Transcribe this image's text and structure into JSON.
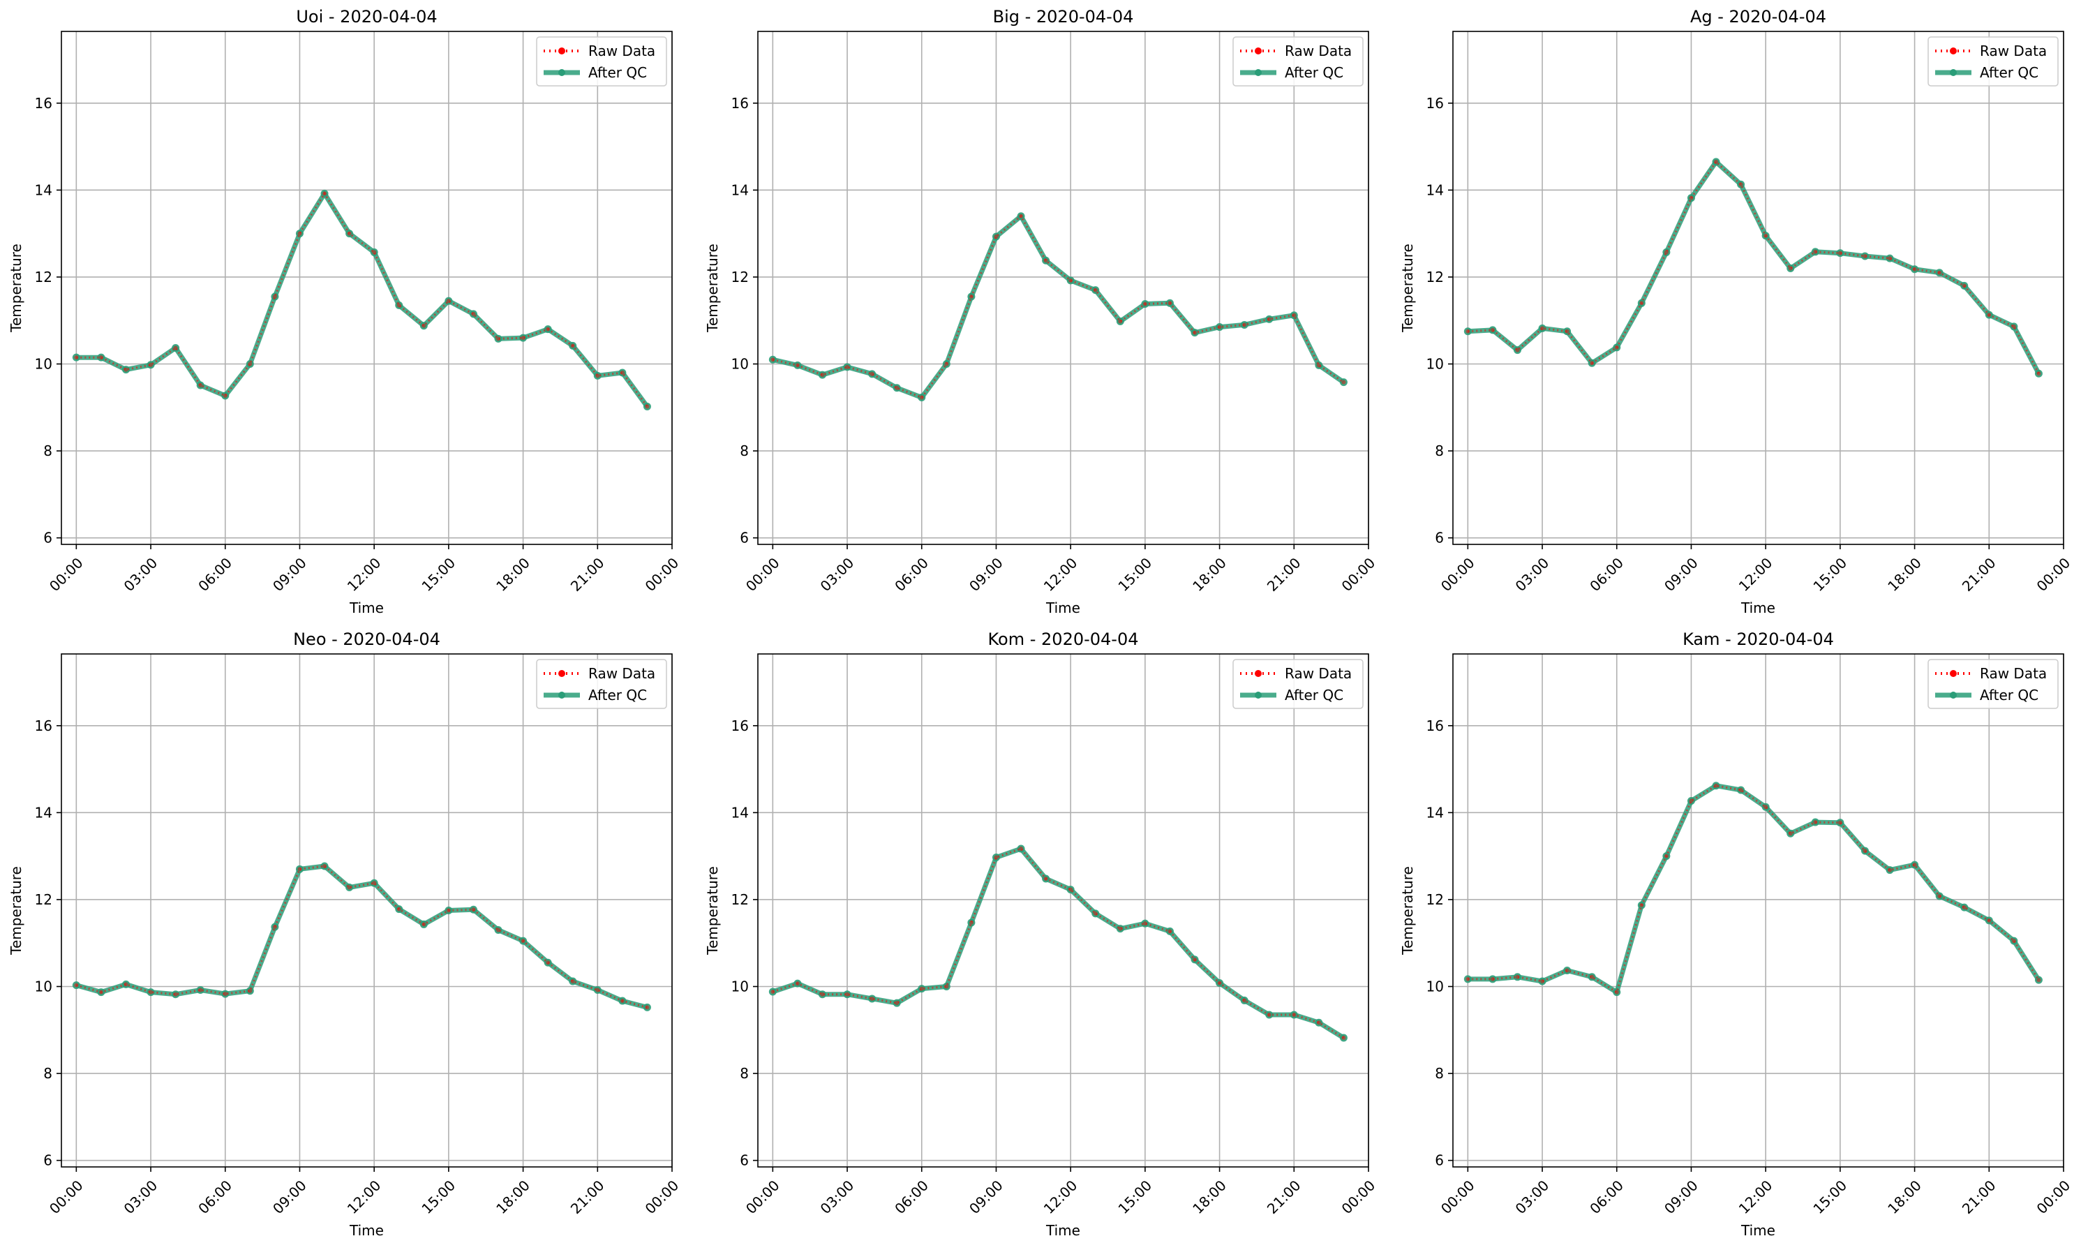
{
  "figure": {
    "background": "#ffffff"
  },
  "styles": {
    "raw_color": "#ff0000",
    "qc_color": "#2a9d78",
    "grid_color": "#b0b0b0"
  },
  "legend": {
    "raw_label": "Raw Data",
    "qc_label": "After QC"
  },
  "chart_data": [
    {
      "type": "line",
      "title": "Uoi - 2020-04-04",
      "xlabel": "Time",
      "ylabel": "Temperature",
      "xlim_hours": [
        -0.6,
        24.0
      ],
      "ylim": [
        5.85,
        17.65
      ],
      "x_ticks": [
        "00:00",
        "03:00",
        "06:00",
        "09:00",
        "12:00",
        "15:00",
        "18:00",
        "21:00",
        "00:00"
      ],
      "y_ticks": [
        6,
        8,
        10,
        12,
        14,
        16
      ],
      "grid": true,
      "legend_position": "top-right",
      "x": [
        "00:00",
        "01:00",
        "02:00",
        "03:00",
        "04:00",
        "05:00",
        "06:00",
        "07:00",
        "08:00",
        "09:00",
        "10:00",
        "11:00",
        "12:00",
        "13:00",
        "14:00",
        "15:00",
        "16:00",
        "17:00",
        "18:00",
        "19:00",
        "20:00",
        "21:00",
        "22:00",
        "23:00"
      ],
      "series": [
        {
          "name": "Raw Data",
          "values": [
            10.15,
            10.15,
            9.87,
            9.98,
            10.37,
            9.51,
            9.27,
            10.0,
            11.55,
            13.0,
            13.92,
            13.0,
            12.57,
            11.35,
            10.88,
            11.45,
            11.15,
            10.58,
            10.6,
            10.8,
            10.42,
            9.73,
            9.8,
            9.02
          ]
        },
        {
          "name": "After QC",
          "values": [
            10.15,
            10.15,
            9.87,
            9.98,
            10.37,
            9.51,
            9.27,
            10.0,
            11.55,
            13.0,
            13.92,
            13.0,
            12.57,
            11.35,
            10.88,
            11.45,
            11.15,
            10.58,
            10.6,
            10.8,
            10.42,
            9.73,
            9.8,
            9.02
          ]
        }
      ]
    },
    {
      "type": "line",
      "title": "Big - 2020-04-04",
      "xlabel": "Time",
      "ylabel": "Temperature",
      "xlim_hours": [
        -0.6,
        24.0
      ],
      "ylim": [
        5.85,
        17.65
      ],
      "x_ticks": [
        "00:00",
        "03:00",
        "06:00",
        "09:00",
        "12:00",
        "15:00",
        "18:00",
        "21:00",
        "00:00"
      ],
      "y_ticks": [
        6,
        8,
        10,
        12,
        14,
        16
      ],
      "grid": true,
      "legend_position": "top-right",
      "x": [
        "00:00",
        "01:00",
        "02:00",
        "03:00",
        "04:00",
        "05:00",
        "06:00",
        "07:00",
        "08:00",
        "09:00",
        "10:00",
        "11:00",
        "12:00",
        "13:00",
        "14:00",
        "15:00",
        "16:00",
        "17:00",
        "18:00",
        "19:00",
        "20:00",
        "21:00",
        "22:00",
        "23:00"
      ],
      "series": [
        {
          "name": "Raw Data",
          "values": [
            10.1,
            9.97,
            9.75,
            9.93,
            9.77,
            9.45,
            9.23,
            10.0,
            11.55,
            12.93,
            13.4,
            12.38,
            11.92,
            11.7,
            10.98,
            11.38,
            11.4,
            10.72,
            10.85,
            10.9,
            11.03,
            11.12,
            9.97,
            9.58
          ]
        },
        {
          "name": "After QC",
          "values": [
            10.1,
            9.97,
            9.75,
            9.93,
            9.77,
            9.45,
            9.23,
            10.0,
            11.55,
            12.93,
            13.4,
            12.38,
            11.92,
            11.7,
            10.98,
            11.38,
            11.4,
            10.72,
            10.85,
            10.9,
            11.03,
            11.12,
            9.97,
            9.58
          ]
        }
      ]
    },
    {
      "type": "line",
      "title": "Ag - 2020-04-04",
      "xlabel": "Time",
      "ylabel": "Temperature",
      "xlim_hours": [
        -0.6,
        24.0
      ],
      "ylim": [
        5.85,
        17.65
      ],
      "x_ticks": [
        "00:00",
        "03:00",
        "06:00",
        "09:00",
        "12:00",
        "15:00",
        "18:00",
        "21:00",
        "00:00"
      ],
      "y_ticks": [
        6,
        8,
        10,
        12,
        14,
        16
      ],
      "grid": true,
      "legend_position": "top-right",
      "x": [
        "00:00",
        "01:00",
        "02:00",
        "03:00",
        "04:00",
        "05:00",
        "06:00",
        "07:00",
        "08:00",
        "09:00",
        "10:00",
        "11:00",
        "12:00",
        "13:00",
        "14:00",
        "15:00",
        "16:00",
        "17:00",
        "18:00",
        "19:00",
        "20:00",
        "21:00",
        "22:00",
        "23:00"
      ],
      "series": [
        {
          "name": "Raw Data",
          "values": [
            10.75,
            10.78,
            10.32,
            10.82,
            10.75,
            10.02,
            10.38,
            11.4,
            12.57,
            13.82,
            14.65,
            14.13,
            12.95,
            12.2,
            12.58,
            12.55,
            12.48,
            12.43,
            12.18,
            12.1,
            11.8,
            11.13,
            10.86,
            9.78
          ]
        },
        {
          "name": "After QC",
          "values": [
            10.75,
            10.78,
            10.32,
            10.82,
            10.75,
            10.02,
            10.38,
            11.4,
            12.57,
            13.82,
            14.65,
            14.13,
            12.95,
            12.2,
            12.58,
            12.55,
            12.48,
            12.43,
            12.18,
            12.1,
            11.8,
            11.13,
            10.86,
            9.78
          ]
        }
      ]
    },
    {
      "type": "line",
      "title": "Neo - 2020-04-04",
      "xlabel": "Time",
      "ylabel": "Temperature",
      "xlim_hours": [
        -0.6,
        24.0
      ],
      "ylim": [
        5.85,
        17.65
      ],
      "x_ticks": [
        "00:00",
        "03:00",
        "06:00",
        "09:00",
        "12:00",
        "15:00",
        "18:00",
        "21:00",
        "00:00"
      ],
      "y_ticks": [
        6,
        8,
        10,
        12,
        14,
        16
      ],
      "grid": true,
      "legend_position": "top-right",
      "x": [
        "00:00",
        "01:00",
        "02:00",
        "03:00",
        "04:00",
        "05:00",
        "06:00",
        "07:00",
        "08:00",
        "09:00",
        "10:00",
        "11:00",
        "12:00",
        "13:00",
        "14:00",
        "15:00",
        "16:00",
        "17:00",
        "18:00",
        "19:00",
        "20:00",
        "21:00",
        "22:00",
        "23:00"
      ],
      "series": [
        {
          "name": "Raw Data",
          "values": [
            10.03,
            9.87,
            10.05,
            9.87,
            9.82,
            9.92,
            9.83,
            9.9,
            11.37,
            12.7,
            12.77,
            12.28,
            12.38,
            11.78,
            11.43,
            11.75,
            11.77,
            11.3,
            11.05,
            10.55,
            10.12,
            9.92,
            9.67,
            9.52
          ]
        },
        {
          "name": "After QC",
          "values": [
            10.03,
            9.87,
            10.05,
            9.87,
            9.82,
            9.92,
            9.83,
            9.9,
            11.37,
            12.7,
            12.77,
            12.28,
            12.38,
            11.78,
            11.43,
            11.75,
            11.77,
            11.3,
            11.05,
            10.55,
            10.12,
            9.92,
            9.67,
            9.52
          ]
        }
      ]
    },
    {
      "type": "line",
      "title": "Kom - 2020-04-04",
      "xlabel": "Time",
      "ylabel": "Temperature",
      "xlim_hours": [
        -0.6,
        24.0
      ],
      "ylim": [
        5.85,
        17.65
      ],
      "x_ticks": [
        "00:00",
        "03:00",
        "06:00",
        "09:00",
        "12:00",
        "15:00",
        "18:00",
        "21:00",
        "00:00"
      ],
      "y_ticks": [
        6,
        8,
        10,
        12,
        14,
        16
      ],
      "grid": true,
      "legend_position": "top-right",
      "x": [
        "00:00",
        "01:00",
        "02:00",
        "03:00",
        "04:00",
        "05:00",
        "06:00",
        "07:00",
        "08:00",
        "09:00",
        "10:00",
        "11:00",
        "12:00",
        "13:00",
        "14:00",
        "15:00",
        "16:00",
        "17:00",
        "18:00",
        "19:00",
        "20:00",
        "21:00",
        "22:00",
        "23:00"
      ],
      "series": [
        {
          "name": "Raw Data",
          "values": [
            9.88,
            10.07,
            9.82,
            9.82,
            9.72,
            9.62,
            9.95,
            10.0,
            11.47,
            12.97,
            13.17,
            12.48,
            12.23,
            11.68,
            11.33,
            11.45,
            11.27,
            10.62,
            10.08,
            9.68,
            9.35,
            9.35,
            9.17,
            8.82
          ]
        },
        {
          "name": "After QC",
          "values": [
            9.88,
            10.07,
            9.82,
            9.82,
            9.72,
            9.62,
            9.95,
            10.0,
            11.47,
            12.97,
            13.17,
            12.48,
            12.23,
            11.68,
            11.33,
            11.45,
            11.27,
            10.62,
            10.08,
            9.68,
            9.35,
            9.35,
            9.17,
            8.82
          ]
        }
      ]
    },
    {
      "type": "line",
      "title": "Kam - 2020-04-04",
      "xlabel": "Time",
      "ylabel": "Temperature",
      "xlim_hours": [
        -0.6,
        24.0
      ],
      "ylim": [
        5.85,
        17.65
      ],
      "x_ticks": [
        "00:00",
        "03:00",
        "06:00",
        "09:00",
        "12:00",
        "15:00",
        "18:00",
        "21:00",
        "00:00"
      ],
      "y_ticks": [
        6,
        8,
        10,
        12,
        14,
        16
      ],
      "grid": true,
      "legend_position": "top-right",
      "x": [
        "00:00",
        "01:00",
        "02:00",
        "03:00",
        "04:00",
        "05:00",
        "06:00",
        "07:00",
        "08:00",
        "09:00",
        "10:00",
        "11:00",
        "12:00",
        "13:00",
        "14:00",
        "15:00",
        "16:00",
        "17:00",
        "18:00",
        "19:00",
        "20:00",
        "21:00",
        "22:00",
        "23:00"
      ],
      "series": [
        {
          "name": "Raw Data",
          "values": [
            10.17,
            10.17,
            10.22,
            10.12,
            10.37,
            10.22,
            9.87,
            11.87,
            13.0,
            14.27,
            14.62,
            14.52,
            14.13,
            13.52,
            13.78,
            13.77,
            13.12,
            12.68,
            12.8,
            12.08,
            11.82,
            11.52,
            11.05,
            10.15
          ]
        },
        {
          "name": "After QC",
          "values": [
            10.17,
            10.17,
            10.22,
            10.12,
            10.37,
            10.22,
            9.87,
            11.87,
            13.0,
            14.27,
            14.62,
            14.52,
            14.13,
            13.52,
            13.78,
            13.77,
            13.12,
            12.68,
            12.8,
            12.08,
            11.82,
            11.52,
            11.05,
            10.15
          ]
        }
      ]
    }
  ]
}
